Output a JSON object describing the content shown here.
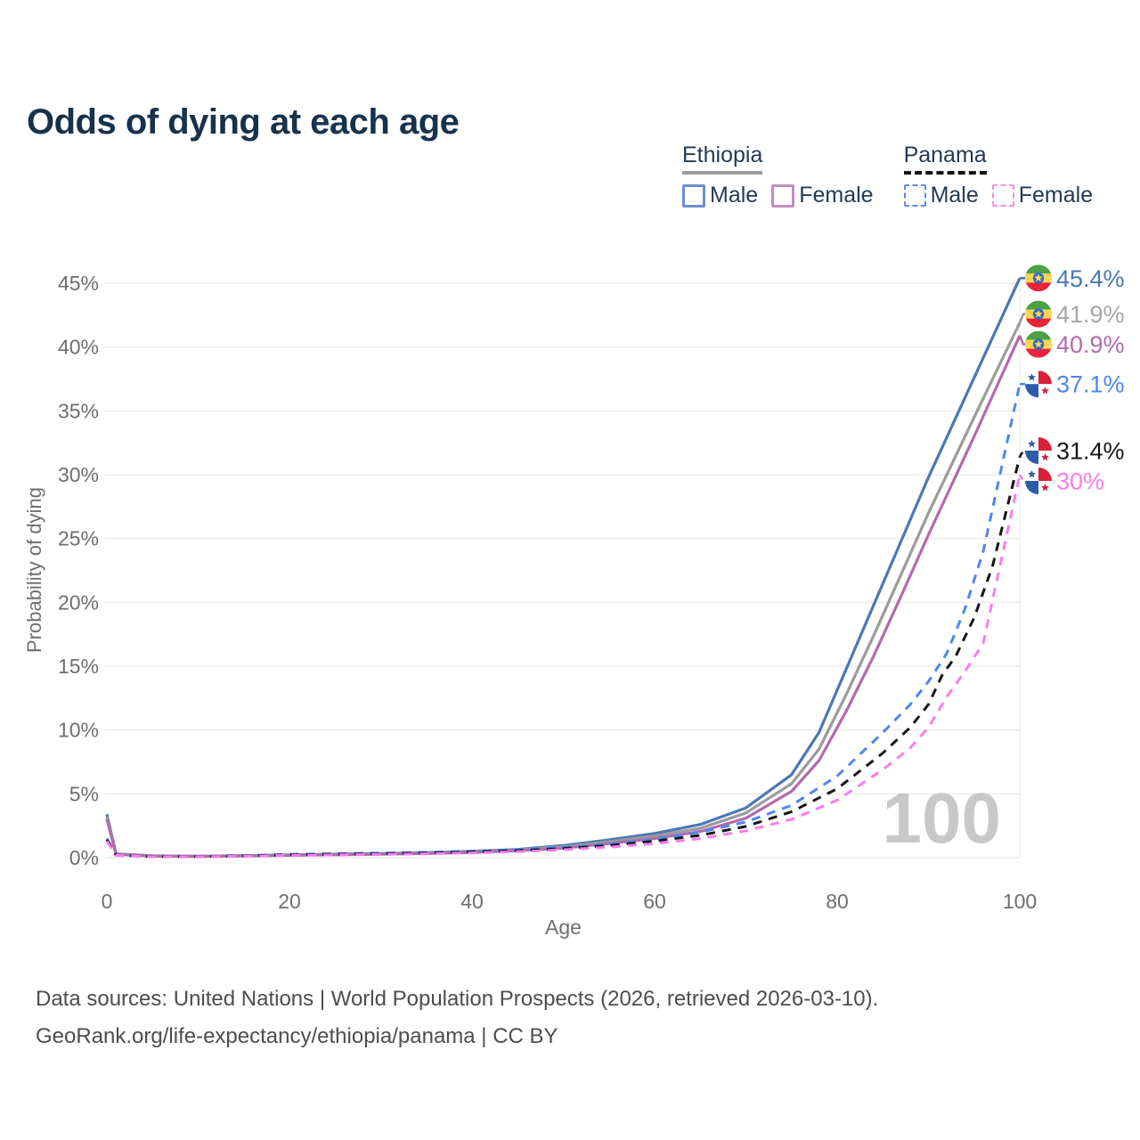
{
  "title": "Odds of dying at each age",
  "legend": {
    "groups": [
      {
        "name": "Ethiopia",
        "line_style": "solid",
        "underline_color": "#9b9b9b",
        "items": [
          {
            "label": "Male",
            "color": "#6b8fc9"
          },
          {
            "label": "Female",
            "color": "#bf8ec0"
          }
        ]
      },
      {
        "name": "Panama",
        "line_style": "dashed",
        "underline_color": "#141414",
        "items": [
          {
            "label": "Male",
            "color": "#5a8fee"
          },
          {
            "label": "Female",
            "color": "#f88ae4"
          }
        ]
      }
    ]
  },
  "chart_data": {
    "type": "line",
    "xlabel": "Age",
    "ylabel": "Probability of dying",
    "xlim": [
      0,
      100
    ],
    "ylim_percent": [
      0,
      45
    ],
    "x_ticks": [
      {
        "v": 0,
        "label": "0"
      },
      {
        "v": 20,
        "label": "20"
      },
      {
        "v": 40,
        "label": "40"
      },
      {
        "v": 60,
        "label": "60"
      },
      {
        "v": 80,
        "label": "80"
      },
      {
        "v": 100,
        "label": "100"
      }
    ],
    "y_ticks": [
      {
        "v": 0,
        "label": "0%"
      },
      {
        "v": 5,
        "label": "5%"
      },
      {
        "v": 10,
        "label": "10%"
      },
      {
        "v": 15,
        "label": "15%"
      },
      {
        "v": 20,
        "label": "20%"
      },
      {
        "v": 25,
        "label": "25%"
      },
      {
        "v": 30,
        "label": "30%"
      },
      {
        "v": 35,
        "label": "35%"
      },
      {
        "v": 40,
        "label": "40%"
      },
      {
        "v": 45,
        "label": "45%"
      }
    ],
    "grid": "horizontal-only",
    "watermark": "100",
    "legend_position": "top-right",
    "series": [
      {
        "key": "ethiopia-male",
        "name": "Ethiopia Male",
        "country": "ethiopia",
        "flag": "ethiopia-flag",
        "color": "#4a77b6",
        "dashed": false,
        "end_label": "45.4%",
        "end_value": 45.4,
        "points": [
          [
            0,
            3.4
          ],
          [
            1,
            0.3
          ],
          [
            5,
            0.15
          ],
          [
            10,
            0.12
          ],
          [
            15,
            0.16
          ],
          [
            20,
            0.22
          ],
          [
            25,
            0.28
          ],
          [
            30,
            0.33
          ],
          [
            35,
            0.4
          ],
          [
            40,
            0.5
          ],
          [
            45,
            0.65
          ],
          [
            50,
            0.95
          ],
          [
            55,
            1.4
          ],
          [
            60,
            1.9
          ],
          [
            65,
            2.6
          ],
          [
            70,
            3.9
          ],
          [
            75,
            6.5
          ],
          [
            78,
            9.8
          ],
          [
            81,
            14.8
          ],
          [
            84,
            19.8
          ],
          [
            87,
            24.8
          ],
          [
            90,
            29.8
          ],
          [
            95,
            37.6
          ],
          [
            100,
            45.4
          ]
        ]
      },
      {
        "key": "ethiopia-all",
        "name": "Ethiopia Both sexes",
        "country": "ethiopia",
        "flag": "ethiopia-flag",
        "color": "#9b9b9b",
        "label_color": "#a6a6a6",
        "dashed": false,
        "end_label": "41.9%",
        "end_value": 41.9,
        "points": [
          [
            0,
            3.2
          ],
          [
            1,
            0.28
          ],
          [
            5,
            0.14
          ],
          [
            10,
            0.11
          ],
          [
            15,
            0.15
          ],
          [
            20,
            0.2
          ],
          [
            25,
            0.25
          ],
          [
            30,
            0.3
          ],
          [
            35,
            0.36
          ],
          [
            40,
            0.45
          ],
          [
            45,
            0.6
          ],
          [
            50,
            0.85
          ],
          [
            55,
            1.25
          ],
          [
            60,
            1.7
          ],
          [
            65,
            2.3
          ],
          [
            70,
            3.5
          ],
          [
            75,
            5.8
          ],
          [
            78,
            8.5
          ],
          [
            81,
            12.8
          ],
          [
            84,
            17.4
          ],
          [
            87,
            22.2
          ],
          [
            90,
            27.0
          ],
          [
            95,
            34.5
          ],
          [
            100,
            41.9
          ]
        ]
      },
      {
        "key": "ethiopia-female",
        "name": "Ethiopia Female",
        "country": "ethiopia",
        "flag": "ethiopia-flag",
        "color": "#b369af",
        "dashed": false,
        "end_label": "40.9%",
        "end_value": 40.9,
        "points": [
          [
            0,
            3.0
          ],
          [
            1,
            0.26
          ],
          [
            5,
            0.13
          ],
          [
            10,
            0.1
          ],
          [
            15,
            0.14
          ],
          [
            20,
            0.18
          ],
          [
            25,
            0.22
          ],
          [
            30,
            0.27
          ],
          [
            35,
            0.33
          ],
          [
            40,
            0.41
          ],
          [
            45,
            0.55
          ],
          [
            50,
            0.75
          ],
          [
            55,
            1.1
          ],
          [
            60,
            1.5
          ],
          [
            65,
            2.05
          ],
          [
            70,
            3.1
          ],
          [
            75,
            5.2
          ],
          [
            78,
            7.6
          ],
          [
            81,
            11.5
          ],
          [
            84,
            15.8
          ],
          [
            87,
            20.5
          ],
          [
            90,
            25.3
          ],
          [
            95,
            33.0
          ],
          [
            100,
            40.9
          ]
        ]
      },
      {
        "key": "panama-male",
        "name": "Panama Male",
        "country": "panama",
        "flag": "panama-flag",
        "color": "#4d87ef",
        "dashed": true,
        "end_label": "37.1%",
        "end_value": 37.1,
        "points": [
          [
            0,
            1.5
          ],
          [
            1,
            0.2
          ],
          [
            5,
            0.1
          ],
          [
            10,
            0.1
          ],
          [
            15,
            0.16
          ],
          [
            20,
            0.26
          ],
          [
            25,
            0.31
          ],
          [
            30,
            0.36
          ],
          [
            35,
            0.42
          ],
          [
            40,
            0.5
          ],
          [
            45,
            0.62
          ],
          [
            50,
            0.8
          ],
          [
            55,
            1.05
          ],
          [
            60,
            1.45
          ],
          [
            65,
            2.0
          ],
          [
            70,
            2.8
          ],
          [
            75,
            4.1
          ],
          [
            80,
            6.4
          ],
          [
            85,
            9.8
          ],
          [
            88,
            12.0
          ],
          [
            90,
            13.8
          ],
          [
            92,
            16.0
          ],
          [
            94,
            19.5
          ],
          [
            96,
            24.0
          ],
          [
            100,
            37.1
          ]
        ]
      },
      {
        "key": "panama-all",
        "name": "Panama Both sexes",
        "country": "panama",
        "flag": "panama-flag",
        "color": "#161616",
        "dashed": true,
        "end_label": "31.4%",
        "end_value": 31.4,
        "points": [
          [
            0,
            1.4
          ],
          [
            1,
            0.19
          ],
          [
            5,
            0.09
          ],
          [
            10,
            0.09
          ],
          [
            15,
            0.14
          ],
          [
            20,
            0.22
          ],
          [
            25,
            0.27
          ],
          [
            30,
            0.31
          ],
          [
            35,
            0.37
          ],
          [
            40,
            0.45
          ],
          [
            45,
            0.55
          ],
          [
            50,
            0.72
          ],
          [
            55,
            0.95
          ],
          [
            60,
            1.3
          ],
          [
            65,
            1.75
          ],
          [
            70,
            2.45
          ],
          [
            75,
            3.6
          ],
          [
            80,
            5.4
          ],
          [
            85,
            8.2
          ],
          [
            88,
            10.2
          ],
          [
            90,
            12.0
          ],
          [
            91.5,
            14.3
          ],
          [
            93,
            15.8
          ],
          [
            95,
            18.8
          ],
          [
            97,
            22.8
          ],
          [
            100,
            31.4
          ]
        ]
      },
      {
        "key": "panama-female",
        "name": "Panama Female",
        "country": "panama",
        "flag": "panama-flag",
        "color": "#fb7cec",
        "dashed": true,
        "end_label": "30%",
        "end_value": 30,
        "points": [
          [
            0,
            1.3
          ],
          [
            1,
            0.18
          ],
          [
            5,
            0.08
          ],
          [
            10,
            0.08
          ],
          [
            15,
            0.12
          ],
          [
            20,
            0.18
          ],
          [
            25,
            0.22
          ],
          [
            30,
            0.26
          ],
          [
            35,
            0.31
          ],
          [
            40,
            0.38
          ],
          [
            45,
            0.47
          ],
          [
            50,
            0.62
          ],
          [
            55,
            0.82
          ],
          [
            60,
            1.1
          ],
          [
            65,
            1.5
          ],
          [
            70,
            2.1
          ],
          [
            75,
            3.0
          ],
          [
            80,
            4.5
          ],
          [
            85,
            6.9
          ],
          [
            88,
            8.6
          ],
          [
            90,
            10.2
          ],
          [
            92,
            12.6
          ],
          [
            94,
            14.6
          ],
          [
            96,
            16.8
          ],
          [
            100,
            30.0
          ]
        ]
      }
    ],
    "colors": {
      "gridline": "#ececec",
      "axis_text": "#6e6e6e",
      "watermark": "#c8c8c8",
      "title": "#17324d",
      "legend_text": "#233a55"
    }
  },
  "footer": {
    "line1": "Data sources: United Nations | World Population Prospects (2026, retrieved 2026-03-10).",
    "line2": "GeoRank.org/life-expectancy/ethiopia/panama | CC BY"
  }
}
